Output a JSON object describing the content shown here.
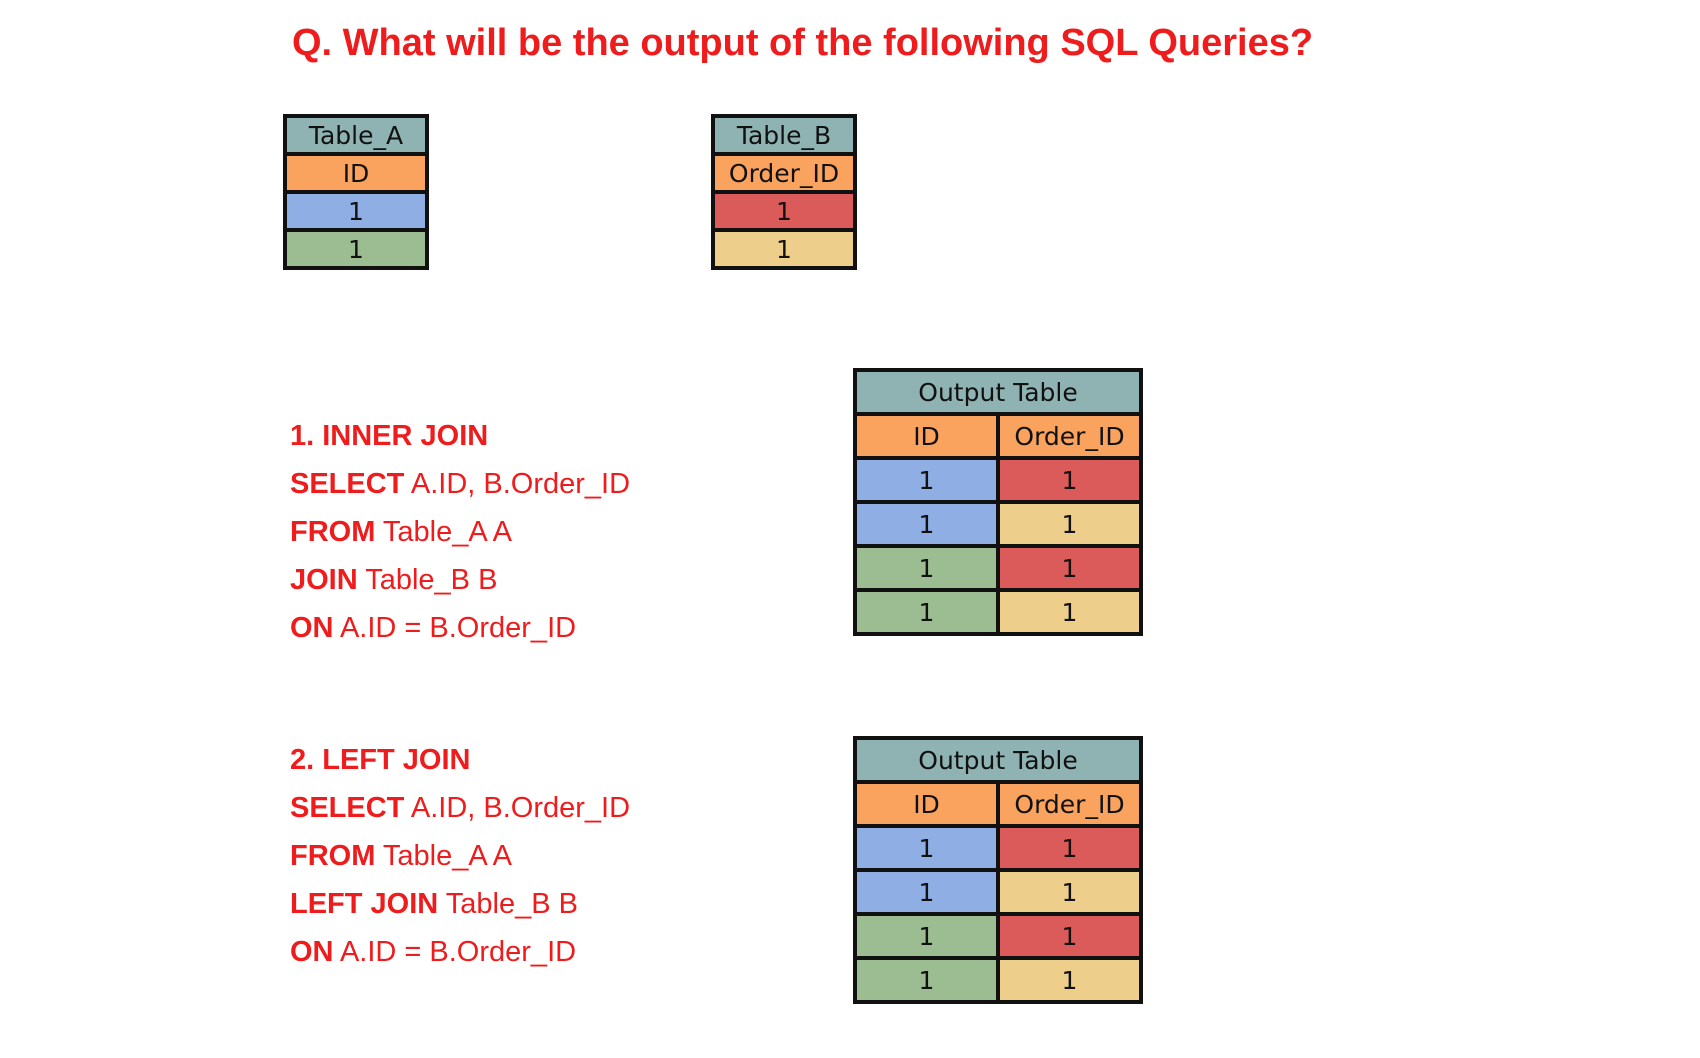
{
  "question": "Q. What will be the output of the following SQL Queries?",
  "table_a": {
    "title": "Table_A",
    "column": "ID",
    "rows": [
      "1",
      "1"
    ]
  },
  "table_b": {
    "title": "Table_B",
    "column": "Order_ID",
    "rows": [
      "1",
      "1"
    ]
  },
  "query1": {
    "heading": "1. INNER JOIN",
    "select_kw": "SELECT",
    "select_rest": " A.ID, B.Order_ID",
    "from_kw": "FROM",
    "from_rest": " Table_A A",
    "join_kw": "JOIN",
    "join_rest": " Table_B B",
    "on_kw": "ON",
    "on_rest": " A.ID = B.Order_ID"
  },
  "query2": {
    "heading": "2. LEFT JOIN",
    "select_kw": "SELECT",
    "select_rest": " A.ID, B.Order_ID",
    "from_kw": "FROM",
    "from_rest": " Table_A A",
    "join_kw": "LEFT JOIN",
    "join_rest": " Table_B B",
    "on_kw": "ON",
    "on_rest": " A.ID = B.Order_ID"
  },
  "output1": {
    "title": "Output Table",
    "columns": [
      "ID",
      "Order_ID"
    ],
    "rows": [
      [
        "1",
        "1"
      ],
      [
        "1",
        "1"
      ],
      [
        "1",
        "1"
      ],
      [
        "1",
        "1"
      ]
    ]
  },
  "output2": {
    "title": "Output Table",
    "columns": [
      "ID",
      "Order_ID"
    ],
    "rows": [
      [
        "1",
        "1"
      ],
      [
        "1",
        "1"
      ],
      [
        "1",
        "1"
      ],
      [
        "1",
        "1"
      ]
    ]
  },
  "colors": {
    "title_red": "#ee1c1c",
    "header": "#8fb2b2",
    "column_header": "#f9a35f",
    "a_row1": "#8eaee4",
    "a_row2": "#9cbd91",
    "b_row1": "#db5a5a",
    "b_row2": "#edce8b"
  }
}
